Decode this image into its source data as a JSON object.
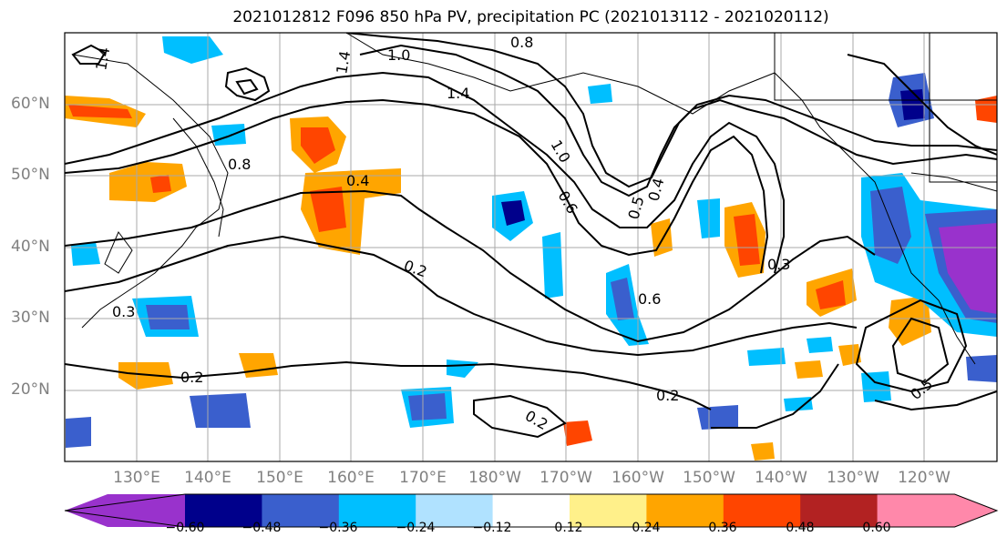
{
  "title": "2021012812 F096 850 hPa PV, precipitation PC (2021013112 - 2021020112)",
  "lat_labels": [
    "60°N",
    "50°N",
    "40°N",
    "30°N",
    "20°N"
  ],
  "lon_labels": [
    "130°E",
    "140°E",
    "150°E",
    "160°E",
    "170°E",
    "180°W",
    "170°W",
    "160°W",
    "150°W",
    "140°W",
    "130°W",
    "120°W"
  ],
  "contour_labels": [
    "1.4",
    "1.0",
    "0.8",
    "1.4",
    "1.4",
    "1.0",
    "0.8",
    "0.4",
    "0.2",
    "0.3",
    "0.2",
    "0.6",
    "0.5",
    "0.4",
    "0.6",
    "0.3",
    "0.2",
    "0.2",
    "0.5"
  ],
  "colorbar": {
    "ticks": [
      "−0.60",
      "−0.48",
      "−0.36",
      "−0.24",
      "−0.12",
      "0.12",
      "0.24",
      "0.36",
      "0.48",
      "0.60"
    ],
    "colors": [
      "#9932cc",
      "#00008b",
      "#3a5fcd",
      "#00bfff",
      "#b0e2ff",
      "#ffffff",
      "#fff08a",
      "#ffa500",
      "#ff4500",
      "#b22222",
      "#ff88aa"
    ]
  }
}
